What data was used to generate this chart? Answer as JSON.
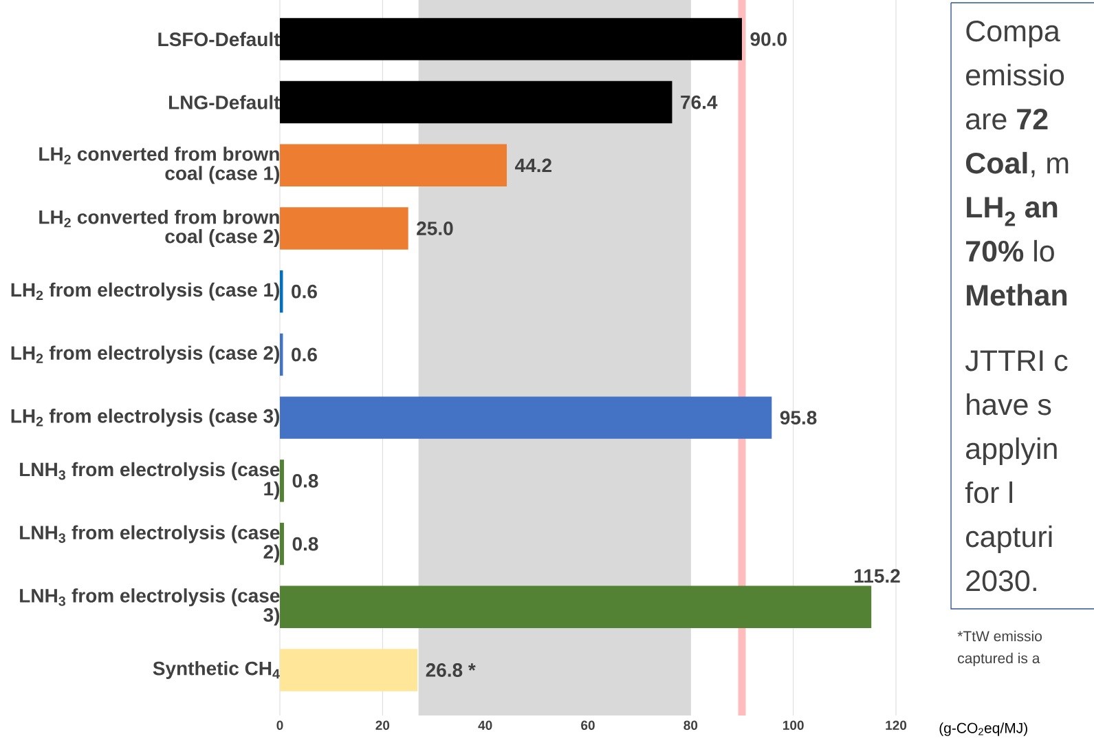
{
  "chart_data": {
    "type": "bar",
    "orientation": "horizontal",
    "xlabel": "(g-CO$_{2}$eq/MJ)",
    "categories": [
      "LSFO-Default",
      "LNG-Default",
      "LH$_{2}$ converted from brown coal (case 1)",
      "LH$_{2}$ converted from brown coal (case 2)",
      "LH$_{2}$ from electrolysis (case 1)",
      "LH$_{2}$ from electrolysis (case 2)",
      "LH$_{2}$ from electrolysis (case 3)",
      "LNH$_{3}$ from electrolysis (case 1)",
      "LNH$_{3}$ from electrolysis (case 2)",
      "LNH$_{3}$ from electrolysis (case 3)",
      "Synthetic CH$_{4}$"
    ],
    "values": [
      90.0,
      76.4,
      44.2,
      25.0,
      0.6,
      0.6,
      95.8,
      0.8,
      0.8,
      115.2,
      26.8
    ],
    "value_labels": [
      "90.0",
      "76.4",
      "44.2",
      "25.0",
      "0.6",
      "0.6",
      "95.8",
      "0.8",
      "0.8",
      "115.2",
      "26.8 *"
    ],
    "colors": [
      "#000000",
      "#000000",
      "#ed7d31",
      "#ed7d31",
      "#0070c0",
      "#4472c4",
      "#4472c4",
      "#548235",
      "#548235",
      "#548235",
      "#ffe699"
    ],
    "xlim": [
      0,
      120
    ],
    "xticks": [
      0,
      20,
      40,
      60,
      80,
      100,
      120
    ],
    "grid": "x",
    "bands": [
      {
        "axis": "x",
        "from": 27,
        "to": 80,
        "color": "#d9d9d9"
      }
    ],
    "ref_lines": [
      {
        "axis": "x",
        "value": 90,
        "color": "#ffbcbc"
      }
    ],
    "annotations": [
      "Compa",
      "emissio",
      "are **72**",
      "**Coal**, m",
      "**LH$_{2}$ an**",
      "**70%** lo",
      "**Methan**",
      "JTTRI c",
      "have s",
      "applyin",
      "for l",
      "capturi",
      "2030.",
      "*TtW emissio",
      "captured is a"
    ]
  }
}
